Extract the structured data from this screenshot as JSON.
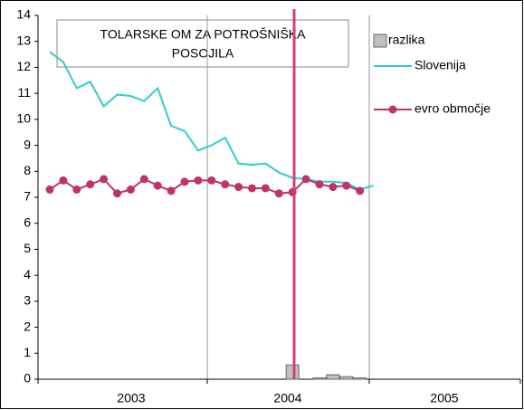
{
  "chart_data": {
    "type": "line",
    "title_lines": [
      "TOLARSKE OM ZA POTROŠNIŠKA",
      "POSOJILA"
    ],
    "categories": [
      null,
      null,
      null,
      null,
      null,
      null,
      null,
      null,
      null,
      null,
      null,
      null,
      null,
      null,
      null,
      null,
      null,
      null,
      null,
      null,
      null,
      null,
      null,
      null,
      null
    ],
    "year_labels": [
      "2003",
      "2004",
      "2005"
    ],
    "series": [
      {
        "name": "razlika",
        "type": "bar",
        "color": "#c0c0c0",
        "values": [
          null,
          null,
          null,
          null,
          null,
          null,
          null,
          null,
          null,
          null,
          null,
          null,
          null,
          null,
          null,
          null,
          null,
          null,
          0.55,
          null,
          0.05,
          0.17,
          0.1,
          0.05,
          null
        ]
      },
      {
        "name": "Slovenija",
        "type": "line",
        "color": "#33cccc",
        "values": [
          12.6,
          12.2,
          11.2,
          11.45,
          10.5,
          10.95,
          10.9,
          10.7,
          11.2,
          9.75,
          9.55,
          8.8,
          9.0,
          9.3,
          8.3,
          8.25,
          8.3,
          7.95,
          7.75,
          7.7,
          7.6,
          7.6,
          7.55,
          7.3,
          7.45
        ]
      },
      {
        "name": "evro območje",
        "type": "line-markers",
        "color": "#c0336a",
        "values": [
          7.3,
          7.65,
          7.3,
          7.5,
          7.7,
          7.15,
          7.3,
          7.7,
          7.45,
          7.25,
          7.6,
          7.65,
          7.65,
          7.5,
          7.4,
          7.35,
          7.35,
          7.15,
          7.2,
          7.7,
          7.5,
          7.4,
          7.45,
          7.25,
          null
        ]
      }
    ],
    "ylim": [
      0,
      14
    ],
    "yticks": [
      0,
      1,
      2,
      3,
      4,
      5,
      6,
      7,
      8,
      9,
      10,
      11,
      12,
      13,
      14
    ]
  }
}
